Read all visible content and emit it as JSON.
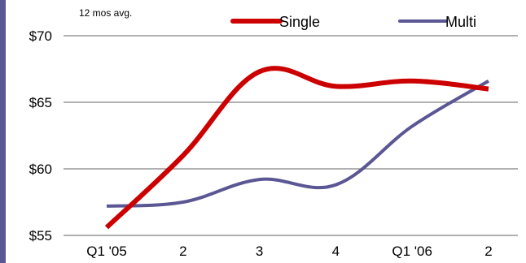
{
  "colors": {
    "accent_bar": "#5B5694",
    "grid": "#808080"
  },
  "chart_data": {
    "type": "line",
    "title": "",
    "annotation": "12 mos avg.",
    "xlabel": "",
    "ylabel": "",
    "categories": [
      "Q1 '05",
      "2",
      "3",
      "4",
      "Q1 '06",
      "2"
    ],
    "ylim": [
      55,
      70
    ],
    "yticks": [
      55,
      60,
      65,
      70
    ],
    "ytick_labels": [
      "$55",
      "$60",
      "$65",
      "$70"
    ],
    "grid": "horizontal",
    "legend": "top",
    "series": [
      {
        "name": "Single",
        "color": "#CC0000",
        "values": [
          55.6,
          61.0,
          67.3,
          66.2,
          66.6,
          66.0
        ]
      },
      {
        "name": "Multi",
        "color": "#5B5694",
        "values": [
          57.2,
          57.5,
          59.2,
          58.8,
          63.2,
          66.6
        ]
      }
    ]
  }
}
